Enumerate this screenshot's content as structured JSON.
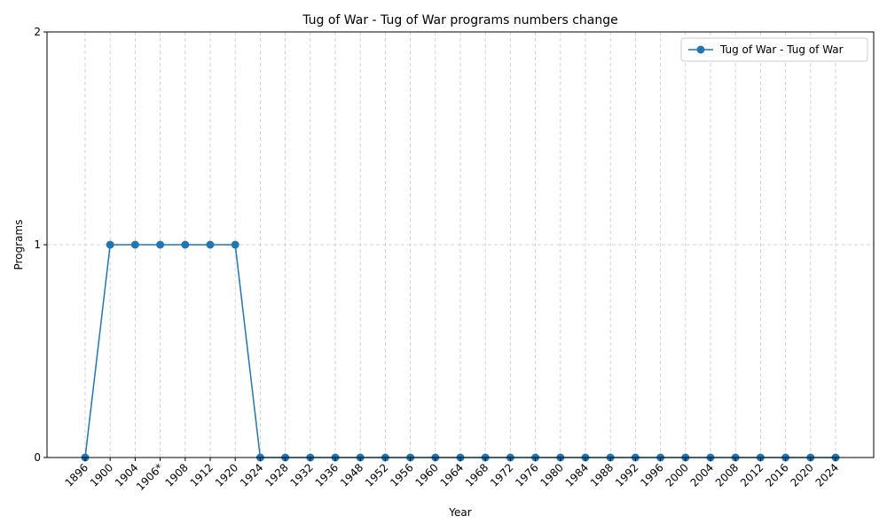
{
  "chart_data": {
    "type": "line",
    "title": "Tug of War - Tug of War programs numbers change",
    "xlabel": "Year",
    "ylabel": "Programs",
    "categories": [
      "1896",
      "1900",
      "1904",
      "1906*",
      "1908",
      "1912",
      "1920",
      "1924",
      "1928",
      "1932",
      "1936",
      "1948",
      "1952",
      "1956",
      "1960",
      "1964",
      "1968",
      "1972",
      "1976",
      "1980",
      "1984",
      "1988",
      "1992",
      "1996",
      "2000",
      "2004",
      "2008",
      "2012",
      "2016",
      "2020",
      "2024"
    ],
    "series": [
      {
        "name": "Tug of War - Tug of War",
        "values": [
          0,
          1,
          1,
          1,
          1,
          1,
          1,
          0,
          0,
          0,
          0,
          0,
          0,
          0,
          0,
          0,
          0,
          0,
          0,
          0,
          0,
          0,
          0,
          0,
          0,
          0,
          0,
          0,
          0,
          0,
          0
        ],
        "color": "#1f77b4",
        "marker": "circle"
      }
    ],
    "ylim": [
      0,
      2
    ],
    "yticks": [
      "0",
      "1",
      "2"
    ],
    "grid": true,
    "legend_position": "top-right"
  }
}
